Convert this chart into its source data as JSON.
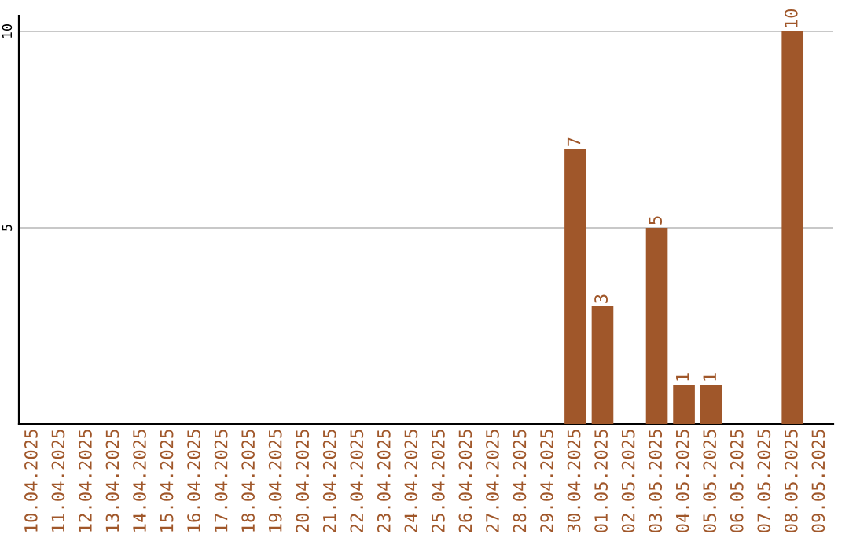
{
  "chart_data": {
    "type": "bar",
    "categories": [
      "10.04.2025",
      "11.04.2025",
      "12.04.2025",
      "13.04.2025",
      "14.04.2025",
      "15.04.2025",
      "16.04.2025",
      "17.04.2025",
      "18.04.2025",
      "19.04.2025",
      "20.04.2025",
      "21.04.2025",
      "22.04.2025",
      "23.04.2025",
      "24.04.2025",
      "25.04.2025",
      "26.04.2025",
      "27.04.2025",
      "28.04.2025",
      "29.04.2025",
      "30.04.2025",
      "01.05.2025",
      "02.05.2025",
      "03.05.2025",
      "04.05.2025",
      "05.05.2025",
      "06.05.2025",
      "07.05.2025",
      "08.05.2025",
      "09.05.2025"
    ],
    "values": [
      0,
      0,
      0,
      0,
      0,
      0,
      0,
      0,
      0,
      0,
      0,
      0,
      0,
      0,
      0,
      0,
      0,
      0,
      0,
      0,
      7,
      3,
      0,
      5,
      1,
      1,
      0,
      0,
      10,
      0
    ],
    "value_labels": [
      null,
      null,
      null,
      null,
      null,
      null,
      null,
      null,
      null,
      null,
      null,
      null,
      null,
      null,
      null,
      null,
      null,
      null,
      null,
      null,
      "7",
      "3",
      null,
      "5",
      "1",
      "1",
      null,
      null,
      "10",
      null
    ],
    "color": "#a0572a",
    "ylim": [
      0,
      10.4
    ],
    "yticks": [
      5,
      10
    ],
    "grid": "y"
  }
}
